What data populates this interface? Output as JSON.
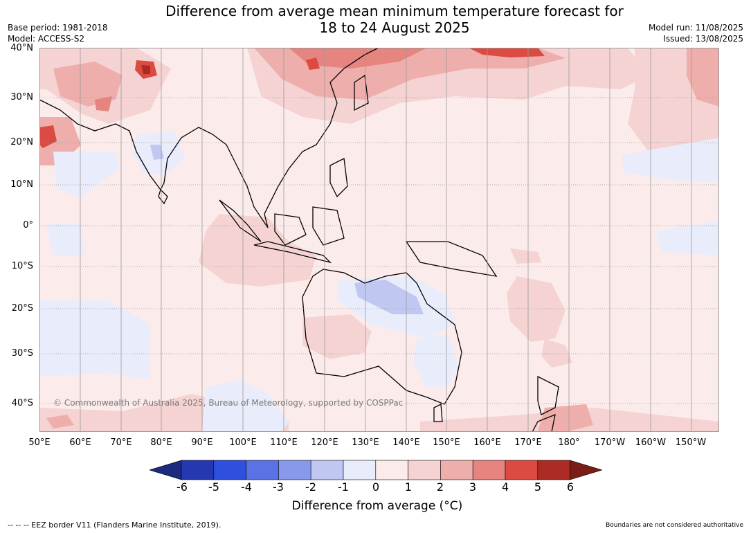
{
  "title_line1": "Difference from average mean minimum temperature forecast for",
  "title_line2": "18 to 24 August 2025",
  "meta_left": {
    "base_period": "Base period: 1981-2018",
    "model": "Model: ACCESS-S2"
  },
  "meta_right": {
    "model_run": "Model run: 11/08/2025",
    "issued": "Issued: 13/08/2025"
  },
  "lat_labels": [
    "40°N",
    "30°N",
    "20°N",
    "10°N",
    "0°",
    "10°S",
    "20°S",
    "30°S",
    "40°S"
  ],
  "lon_labels": [
    "50°E",
    "60°E",
    "70°E",
    "80°E",
    "90°E",
    "100°E",
    "110°E",
    "120°E",
    "130°E",
    "140°E",
    "150°E",
    "160°E",
    "170°E",
    "180°",
    "170°W",
    "160°W",
    "150°W"
  ],
  "copyright": "© Commonwealth of Australia 2025, Bureau of Meteorology, supported by COSPPac",
  "legend": {
    "ticks": [
      "-6",
      "-5",
      "-4",
      "-3",
      "-2",
      "-1",
      "0",
      "1",
      "2",
      "3",
      "4",
      "5",
      "6"
    ],
    "colors": [
      "#1c2b80",
      "#2638b0",
      "#2f4fde",
      "#5a72e3",
      "#8898ea",
      "#c0c8f2",
      "#e9ecfb",
      "#fcebeb",
      "#f5d3d3",
      "#eeaeab",
      "#e6847f",
      "#dc4b41",
      "#ab2a23",
      "#7c1c16"
    ],
    "label": "Difference from average (°C)"
  },
  "footer_left": "-- -- -- EEZ border V11 (Flanders Marine Institute, 2019).",
  "footer_right": "Boundaries are not considered authoritative",
  "colors": {
    "background_anomaly": "#fcebeb",
    "grid_line": "#999999",
    "coast": "#000000"
  }
}
